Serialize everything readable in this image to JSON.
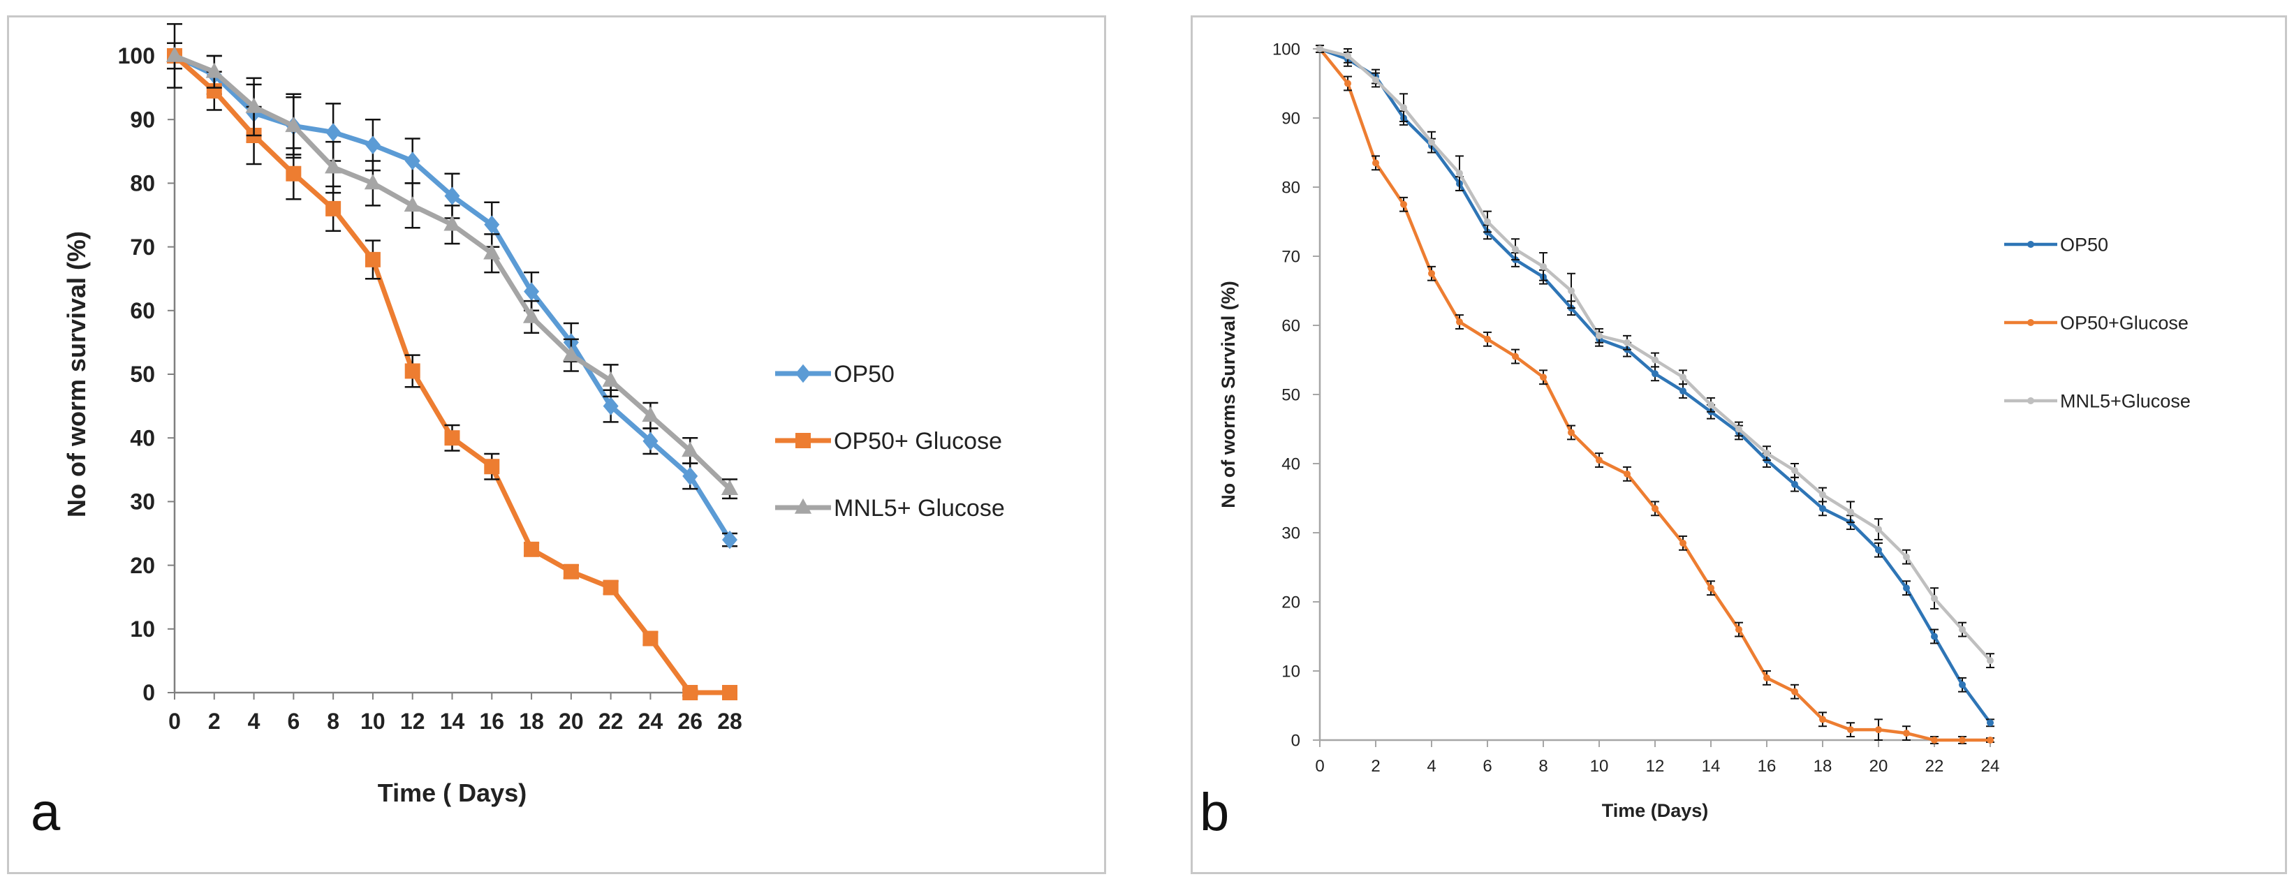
{
  "chart_data": [
    {
      "type": "line",
      "panel_label": "a",
      "title": "",
      "xlabel": "Time ( Days)",
      "ylabel": "No of worm survival (%)",
      "xlim": [
        0,
        28
      ],
      "ylim": [
        0,
        100
      ],
      "x_ticks": [
        0,
        2,
        4,
        6,
        8,
        10,
        12,
        14,
        16,
        18,
        20,
        22,
        24,
        26,
        28
      ],
      "y_ticks": [
        0,
        10,
        20,
        30,
        40,
        50,
        60,
        70,
        80,
        90,
        100
      ],
      "x_tick_labels": [
        "0",
        "2",
        "4",
        "6",
        "8",
        "10",
        "12",
        "14",
        "16",
        "18",
        "20",
        "22",
        "24",
        "26",
        "28"
      ],
      "y_tick_labels": [
        "0",
        "10",
        "20",
        "30",
        "40",
        "50",
        "60",
        "70",
        "80",
        "90",
        "100"
      ],
      "legend_position": "right",
      "series": [
        {
          "name": "OP50",
          "color": "#5b9bd5",
          "marker": "diamond",
          "x": [
            0,
            2,
            4,
            6,
            8,
            10,
            12,
            14,
            16,
            18,
            20,
            22,
            24,
            26,
            28
          ],
          "values": [
            100,
            97,
            91,
            89,
            88,
            86,
            83.5,
            78,
            73.5,
            63,
            55,
            45,
            39.5,
            34,
            24
          ],
          "errors": [
            5,
            3,
            4.5,
            4.5,
            4.5,
            4,
            3.5,
            3.5,
            3.5,
            3,
            3,
            2.5,
            2,
            2,
            1
          ]
        },
        {
          "name": "OP50+ Glucose",
          "color": "#ed7d31",
          "marker": "square",
          "x": [
            0,
            2,
            4,
            6,
            8,
            10,
            12,
            14,
            16,
            18,
            20,
            22,
            24,
            26,
            28
          ],
          "values": [
            100,
            94.5,
            87.5,
            81.5,
            76,
            68,
            50.5,
            40,
            35.5,
            22.5,
            19,
            16.5,
            8.5,
            0,
            0
          ],
          "errors": [
            1,
            3,
            4.5,
            4,
            3.5,
            3,
            2.5,
            2,
            2,
            1,
            1,
            1,
            1,
            0.5,
            0.5
          ]
        },
        {
          "name": "MNL5+ Glucose",
          "color": "#a5a5a5",
          "marker": "triangle",
          "x": [
            0,
            2,
            4,
            6,
            8,
            10,
            12,
            14,
            16,
            18,
            20,
            22,
            24,
            26,
            28
          ],
          "values": [
            100,
            97.5,
            92,
            89,
            82.5,
            80,
            76.5,
            73.5,
            69,
            59,
            53,
            49,
            43.5,
            38,
            32
          ],
          "errors": [
            2,
            2.5,
            4.5,
            5,
            4,
            3.5,
            3.5,
            3,
            3,
            2.5,
            2.5,
            2.5,
            2,
            2,
            1.5
          ]
        }
      ]
    },
    {
      "type": "line",
      "panel_label": "b",
      "title": "",
      "xlabel": "Time (Days)",
      "ylabel": "No of worms Survival (%)",
      "xlim": [
        0,
        24
      ],
      "ylim": [
        0,
        100
      ],
      "x_ticks": [
        0,
        2,
        4,
        6,
        8,
        10,
        12,
        14,
        16,
        18,
        20,
        22,
        24
      ],
      "y_ticks": [
        0,
        10,
        20,
        30,
        40,
        50,
        60,
        70,
        80,
        90,
        100
      ],
      "x_tick_labels": [
        "0",
        "2",
        "4",
        "6",
        "8",
        "10",
        "12",
        "14",
        "16",
        "18",
        "20",
        "22",
        "24"
      ],
      "y_tick_labels": [
        "0",
        "10",
        "20",
        "30",
        "40",
        "50",
        "60",
        "70",
        "80",
        "90",
        "100"
      ],
      "legend_position": "right",
      "series": [
        {
          "name": "OP50",
          "color": "#2e75b6",
          "marker": "dot",
          "x": [
            0,
            1,
            2,
            3,
            4,
            5,
            6,
            7,
            8,
            9,
            10,
            11,
            12,
            13,
            14,
            15,
            16,
            17,
            18,
            19,
            20,
            21,
            22,
            23,
            24
          ],
          "values": [
            100,
            98.5,
            96,
            90,
            86,
            80.5,
            73.5,
            69.5,
            67,
            62.5,
            58,
            56.5,
            53,
            50.5,
            47.5,
            44.5,
            40.5,
            37,
            33.5,
            31.5,
            27.5,
            22,
            15,
            8,
            2.5
          ],
          "errors": [
            0.5,
            1,
            1,
            1,
            1,
            1,
            1,
            1,
            1,
            1,
            1,
            1,
            1,
            1,
            1,
            1,
            1,
            1,
            1,
            1,
            1,
            1,
            1,
            1,
            0.5
          ]
        },
        {
          "name": "OP50+Glucose",
          "color": "#ed7d31",
          "marker": "dot",
          "x": [
            0,
            1,
            2,
            3,
            4,
            5,
            6,
            7,
            8,
            9,
            10,
            11,
            12,
            13,
            14,
            15,
            16,
            17,
            18,
            19,
            20,
            21,
            22,
            23,
            24
          ],
          "values": [
            100,
            95,
            83.5,
            77.5,
            67.5,
            60.5,
            58,
            55.5,
            52.5,
            44.5,
            40.5,
            38.5,
            33.5,
            28.5,
            22,
            16,
            9,
            7,
            3,
            1.5,
            1.5,
            1,
            0,
            0,
            0
          ],
          "errors": [
            0.5,
            1,
            1,
            1,
            1,
            1,
            1,
            1,
            1,
            1,
            1,
            1,
            1,
            1,
            1,
            1,
            1,
            1,
            1,
            1,
            1.5,
            1,
            0.5,
            0.5,
            0.3
          ]
        },
        {
          "name": "MNL5+Glucose",
          "color": "#bfbfbf",
          "marker": "dot",
          "x": [
            0,
            1,
            2,
            3,
            4,
            5,
            6,
            7,
            8,
            9,
            10,
            11,
            12,
            13,
            14,
            15,
            16,
            17,
            18,
            19,
            20,
            21,
            22,
            23,
            24
          ],
          "values": [
            100,
            99,
            95.5,
            91.5,
            86.5,
            82,
            75,
            71,
            68.5,
            65,
            58.5,
            57.5,
            55,
            52.5,
            48.5,
            45,
            41.5,
            39,
            35.5,
            33,
            30.5,
            26.5,
            20.5,
            16,
            11.5
          ],
          "errors": [
            0.5,
            1,
            1,
            2,
            1.5,
            2.5,
            1.5,
            1.5,
            2,
            2.5,
            1,
            1,
            1,
            1,
            1,
            1,
            1,
            1,
            1,
            1.5,
            1.5,
            1,
            1.5,
            1,
            1
          ]
        }
      ]
    }
  ]
}
